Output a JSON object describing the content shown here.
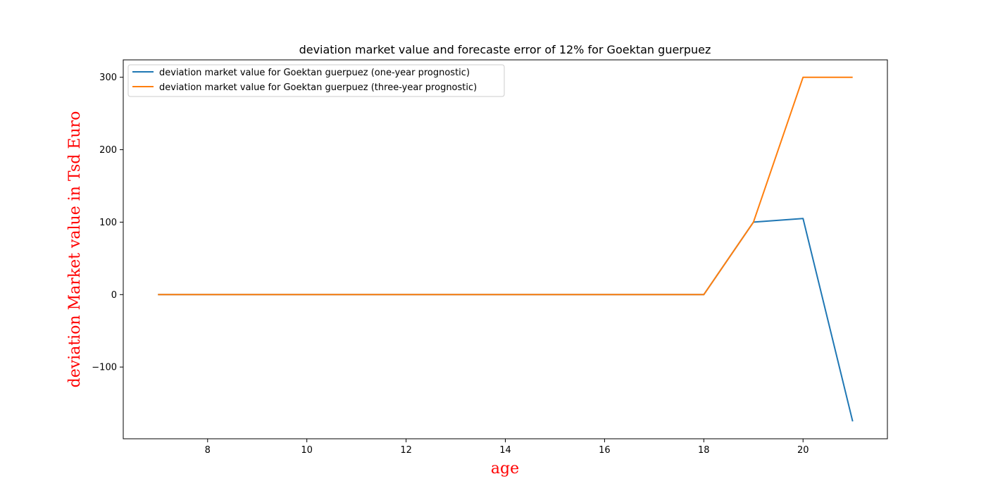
{
  "chart_data": {
    "type": "line",
    "title": "deviation market value and forecaste error of 12% for Goektan guerpuez",
    "xlabel": "age",
    "ylabel": "deviation Market value in Tsd Euro",
    "label_color": "#ff0000",
    "x": [
      7,
      8,
      9,
      10,
      11,
      12,
      13,
      14,
      15,
      16,
      17,
      18,
      19,
      20,
      21
    ],
    "xlim": [
      6.3,
      21.7
    ],
    "ylim": [
      -199,
      324
    ],
    "xticks": [
      8,
      10,
      12,
      14,
      16,
      18,
      20
    ],
    "yticks": [
      -100,
      0,
      100,
      200,
      300
    ],
    "ytick_labels": [
      "−100",
      "0",
      "100",
      "200",
      "300"
    ],
    "grid": false,
    "legend_position": "upper left",
    "series": [
      {
        "name": "deviation market value for Goektan guerpuez (one-year prognostic)",
        "color": "#1f77b4",
        "values": [
          0,
          0,
          0,
          0,
          0,
          0,
          0,
          0,
          0,
          0,
          0,
          0,
          100,
          105,
          -175
        ]
      },
      {
        "name": "deviation market value for Goektan guerpuez (three-year prognostic)",
        "color": "#ff7f0e",
        "values": [
          0,
          0,
          0,
          0,
          0,
          0,
          0,
          0,
          0,
          0,
          0,
          0,
          100,
          300,
          300
        ]
      }
    ]
  }
}
